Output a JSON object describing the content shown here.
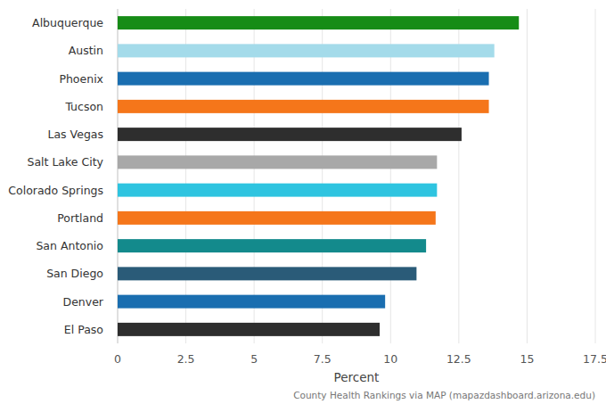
{
  "chart_data": {
    "type": "bar",
    "orientation": "horizontal",
    "categories": [
      "Albuquerque",
      "Austin",
      "Phoenix",
      "Tucson",
      "Las Vegas",
      "Salt Lake City",
      "Colorado Springs",
      "Portland",
      "San Antonio",
      "San Diego",
      "Denver",
      "El Paso"
    ],
    "values": [
      14.7,
      13.8,
      13.6,
      13.6,
      12.6,
      11.7,
      11.7,
      11.65,
      11.3,
      10.95,
      9.8,
      9.6
    ],
    "colors": [
      "#168c16",
      "#a4dbea",
      "#1a6eb0",
      "#f5761a",
      "#2e2e2e",
      "#a8a8a8",
      "#2ec4e0",
      "#f5761a",
      "#138a8c",
      "#2a5b78",
      "#1a6eb0",
      "#2e2e2e"
    ],
    "x_label": "Percent",
    "source": "County Health Rankings via MAP (mapazdashboard.arizona.edu)",
    "xlim": [
      0,
      17.5
    ],
    "xticks": [
      0,
      2.5,
      5,
      7.5,
      10,
      12.5,
      15,
      17.5
    ],
    "grid": true
  }
}
